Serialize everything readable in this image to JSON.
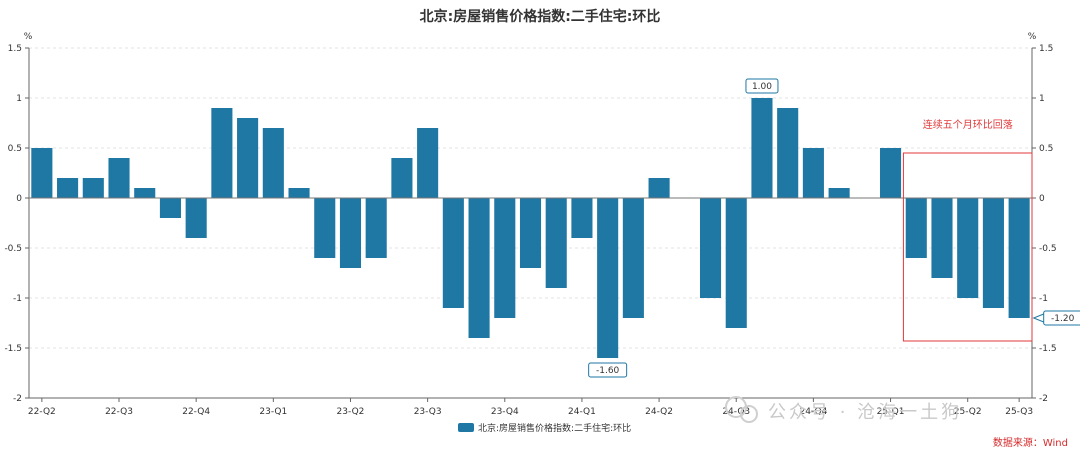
{
  "chart_data": {
    "type": "bar",
    "title": "北京:房屋销售价格指数:二手住宅:环比",
    "unit_left": "%",
    "unit_right": "%",
    "ylim": [
      -2,
      1.5
    ],
    "yticks": [
      "1.5",
      "1",
      "0.5",
      "0",
      "-0.5",
      "-1",
      "-1.5",
      "-2"
    ],
    "ytick_values": [
      1.5,
      1,
      0.5,
      0,
      -0.5,
      -1,
      -1.5,
      -2
    ],
    "grid": true,
    "legend": "bottom-center",
    "series": [
      {
        "name": "北京:房屋销售价格指数:二手住宅:环比",
        "color": "#1f77a4",
        "values": [
          0.5,
          0.2,
          0.2,
          0.4,
          0.1,
          -0.2,
          -0.4,
          0.9,
          0.8,
          0.7,
          0.1,
          -0.6,
          -0.7,
          -0.6,
          0.4,
          0.7,
          -1.1,
          -1.4,
          -1.2,
          -0.7,
          -0.9,
          -0.4,
          -1.6,
          -1.2,
          0.2,
          0.0,
          -1.0,
          -1.3,
          1.0,
          0.9,
          0.5,
          0.1,
          0.0,
          0.5,
          -0.6,
          -0.8,
          -1.0,
          -1.1,
          -1.2
        ]
      }
    ],
    "xtick_labels": [
      {
        "label": "22-Q2",
        "index": 0
      },
      {
        "label": "22-Q3",
        "index": 3
      },
      {
        "label": "22-Q4",
        "index": 6
      },
      {
        "label": "23-Q1",
        "index": 9
      },
      {
        "label": "23-Q2",
        "index": 12
      },
      {
        "label": "23-Q3",
        "index": 15
      },
      {
        "label": "23-Q4",
        "index": 18
      },
      {
        "label": "24-Q1",
        "index": 21
      },
      {
        "label": "24-Q2",
        "index": 24
      },
      {
        "label": "24-Q3",
        "index": 27
      },
      {
        "label": "24-Q4",
        "index": 30
      },
      {
        "label": "25-Q1",
        "index": 33
      },
      {
        "label": "25-Q2",
        "index": 36
      },
      {
        "label": "25-Q3",
        "index": 38
      }
    ],
    "data_labels": [
      {
        "index": 28,
        "text": "1.00"
      },
      {
        "index": 22,
        "text": "-1.60"
      },
      {
        "index": 38,
        "text": "-1.20"
      }
    ],
    "annotation": {
      "text": "连续五个月环比回落",
      "from_index": 34,
      "to_index": 38,
      "color": "#e03a3a"
    },
    "source": "数据来源：Wind",
    "watermark": "公众号 · 沧海一土狗"
  }
}
